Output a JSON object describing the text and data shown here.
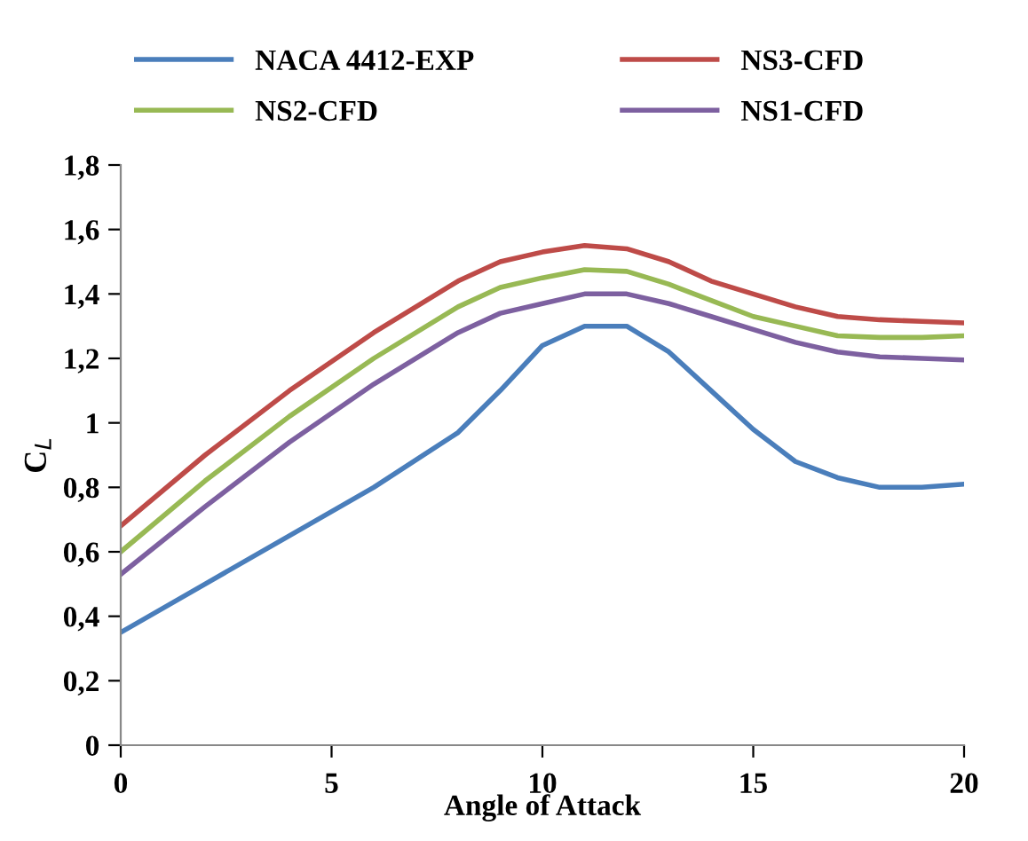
{
  "chart_data": {
    "type": "line",
    "xlabel": "Angle of Attack",
    "ylabel": "C$_{L}$",
    "legend": "top",
    "grid": false,
    "marker": "none",
    "line_style": "solid",
    "x": [
      0,
      2,
      4,
      6,
      8,
      9,
      10,
      11,
      12,
      13,
      14,
      15,
      16,
      17,
      18,
      19,
      20
    ],
    "xlim": [
      0,
      20
    ],
    "xticks": [
      0,
      5,
      10,
      15,
      20
    ],
    "ylim": [
      0,
      1.8
    ],
    "yticks": [
      0,
      {
        "value": 0.2,
        "label": "0,2"
      },
      {
        "value": 0.4,
        "label": "0,4"
      },
      {
        "value": 0.6,
        "label": "0,6"
      },
      {
        "value": 0.8,
        "label": "0,8"
      },
      1,
      {
        "value": 1.2,
        "label": "1,2"
      },
      {
        "value": 1.4,
        "label": "1,4"
      },
      {
        "value": 1.6,
        "label": "1,6"
      },
      {
        "value": 1.8,
        "label": "1,8"
      }
    ],
    "series": [
      {
        "name": "NACA 4412-EXP",
        "color": "#4a7ebb",
        "values": [
          0.35,
          0.5,
          0.65,
          0.8,
          0.97,
          1.1,
          1.24,
          1.3,
          1.3,
          1.22,
          1.1,
          0.98,
          0.88,
          0.83,
          0.8,
          0.8,
          0.81
        ]
      },
      {
        "name": "NS3-CFD",
        "color": "#be4b48",
        "values": [
          0.68,
          0.9,
          1.1,
          1.28,
          1.44,
          1.5,
          1.53,
          1.55,
          1.54,
          1.5,
          1.44,
          1.4,
          1.36,
          1.33,
          1.32,
          1.315,
          1.31
        ]
      },
      {
        "name": "NS2-CFD",
        "color": "#98b954",
        "values": [
          0.6,
          0.82,
          1.02,
          1.2,
          1.36,
          1.42,
          1.45,
          1.475,
          1.47,
          1.43,
          1.38,
          1.33,
          1.3,
          1.27,
          1.265,
          1.265,
          1.27
        ]
      },
      {
        "name": "NS1-CFD",
        "color": "#7d60a0",
        "values": [
          0.53,
          0.74,
          0.94,
          1.12,
          1.28,
          1.34,
          1.37,
          1.4,
          1.4,
          1.37,
          1.33,
          1.29,
          1.25,
          1.22,
          1.205,
          1.2,
          1.195
        ]
      }
    ]
  }
}
